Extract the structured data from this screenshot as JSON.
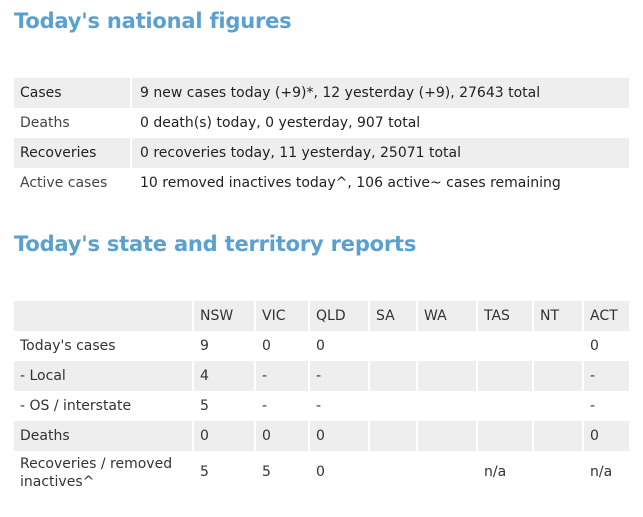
{
  "national": {
    "heading": "Today's national figures",
    "rows": [
      {
        "label": "Cases",
        "value": "9 new cases today (+9)*, 12 yesterday (+9), 27643 total"
      },
      {
        "label": "Deaths",
        "value": "0 death(s) today, 0 yesterday, 907 total"
      },
      {
        "label": "Recoveries",
        "value": "0 recoveries today, 11 yesterday, 25071 total"
      },
      {
        "label": "Active cases",
        "value": "10 removed inactives today^, 106 active~ cases remaining"
      }
    ]
  },
  "states": {
    "heading": "Today's state and territory reports",
    "columns": [
      "",
      "NSW",
      "VIC",
      "QLD",
      "SA",
      "WA",
      "TAS",
      "NT",
      "ACT"
    ],
    "rows": [
      {
        "label": "Today's cases",
        "values": [
          "9",
          "0",
          "0",
          "",
          "",
          "",
          "",
          "0"
        ]
      },
      {
        "label": "- Local",
        "values": [
          "4",
          "-",
          "-",
          "",
          "",
          "",
          "",
          "-"
        ]
      },
      {
        "label": "- OS / interstate",
        "values": [
          "5",
          "-",
          "-",
          "",
          "",
          "",
          "",
          "-"
        ]
      },
      {
        "label": "Deaths",
        "values": [
          "0",
          "0",
          "0",
          "",
          "",
          "",
          "",
          "0"
        ]
      },
      {
        "label": "Recoveries / removed inactives^",
        "values": [
          "5",
          "5",
          "0",
          "",
          "",
          "n/a",
          "",
          "n/a"
        ]
      }
    ]
  },
  "colors": {
    "heading": "#5aa0d0",
    "row_shade": "#eeeeee",
    "text": "#333333"
  }
}
